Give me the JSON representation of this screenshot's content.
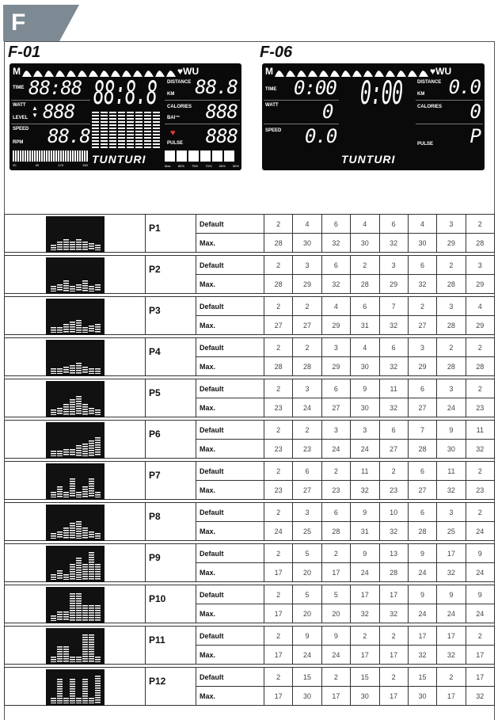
{
  "section": "F",
  "consoles": [
    {
      "id": "F-01",
      "icons_left": "M",
      "icons_right": "♥WU",
      "time_label": "TIME",
      "time": "88:88",
      "main": "88:8.8",
      "watt_label": "WATT",
      "level_label": "LEVEL",
      "watt": "888",
      "speed_label": "SPEED",
      "rpm_label": "RPM",
      "speed": "88.8",
      "distance_label": "DISTANCE",
      "km_label": "KM",
      "distance": "88.8",
      "calories_label": "CALORIES",
      "bai_label": "BAI™",
      "calories": "888",
      "pulse_label": "PULSE",
      "pulse": "888",
      "brand": "TUNTURI",
      "scale": [
        "20",
        "90",
        "170",
        "250"
      ],
      "zones": [
        "Max",
        "80%",
        "75%",
        "70%",
        "65%",
        "50%"
      ]
    },
    {
      "id": "F-06",
      "icons_left": "M",
      "icons_right": "♥WU",
      "time_label": "TIME",
      "time": "0:00",
      "main": "0:00",
      "watt_label": "WATT",
      "watt": "0",
      "speed_label": "SPEED",
      "speed": "0.0",
      "distance_label": "DISTANCE",
      "km_label": "KM",
      "distance": "0.0",
      "calories_label": "CALORIES",
      "calories": "0",
      "pulse_label": "PULSE",
      "pulse": "P",
      "brand": "TUNTURI"
    }
  ],
  "table": {
    "row_labels": [
      "Default",
      "Max."
    ],
    "programs": [
      {
        "name": "P1",
        "default": [
          2,
          4,
          6,
          4,
          6,
          4,
          3,
          2
        ],
        "max": [
          28,
          30,
          32,
          30,
          32,
          30,
          29,
          28
        ]
      },
      {
        "name": "P2",
        "default": [
          2,
          3,
          6,
          2,
          3,
          6,
          2,
          3
        ],
        "max": [
          28,
          29,
          32,
          28,
          29,
          32,
          28,
          29
        ]
      },
      {
        "name": "P3",
        "default": [
          2,
          2,
          4,
          6,
          7,
          2,
          3,
          4
        ],
        "max": [
          27,
          27,
          29,
          31,
          32,
          27,
          28,
          29
        ]
      },
      {
        "name": "P4",
        "default": [
          2,
          2,
          3,
          4,
          6,
          3,
          2,
          2
        ],
        "max": [
          28,
          28,
          29,
          30,
          32,
          29,
          28,
          28
        ]
      },
      {
        "name": "P5",
        "default": [
          2,
          3,
          6,
          9,
          11,
          6,
          3,
          2
        ],
        "max": [
          23,
          24,
          27,
          30,
          32,
          27,
          24,
          23
        ]
      },
      {
        "name": "P6",
        "default": [
          2,
          2,
          3,
          3,
          6,
          7,
          9,
          11
        ],
        "max": [
          23,
          23,
          24,
          24,
          27,
          28,
          30,
          32
        ]
      },
      {
        "name": "P7",
        "default": [
          2,
          6,
          2,
          11,
          2,
          6,
          11,
          2
        ],
        "max": [
          23,
          27,
          23,
          32,
          23,
          27,
          32,
          23
        ]
      },
      {
        "name": "P8",
        "default": [
          2,
          3,
          6,
          9,
          10,
          6,
          3,
          2
        ],
        "max": [
          24,
          25,
          28,
          31,
          32,
          28,
          25,
          24
        ]
      },
      {
        "name": "P9",
        "default": [
          2,
          5,
          2,
          9,
          13,
          9,
          17,
          9
        ],
        "max": [
          17,
          20,
          17,
          24,
          28,
          24,
          32,
          24
        ]
      },
      {
        "name": "P10",
        "default": [
          2,
          5,
          5,
          17,
          17,
          9,
          9,
          9
        ],
        "max": [
          17,
          20,
          20,
          32,
          32,
          24,
          24,
          24
        ]
      },
      {
        "name": "P11",
        "default": [
          2,
          9,
          9,
          2,
          2,
          17,
          17,
          2
        ],
        "max": [
          17,
          24,
          24,
          17,
          17,
          32,
          32,
          17
        ]
      },
      {
        "name": "P12",
        "default": [
          2,
          15,
          2,
          15,
          2,
          15,
          2,
          17
        ],
        "max": [
          17,
          30,
          17,
          30,
          17,
          30,
          17,
          32
        ]
      }
    ]
  }
}
